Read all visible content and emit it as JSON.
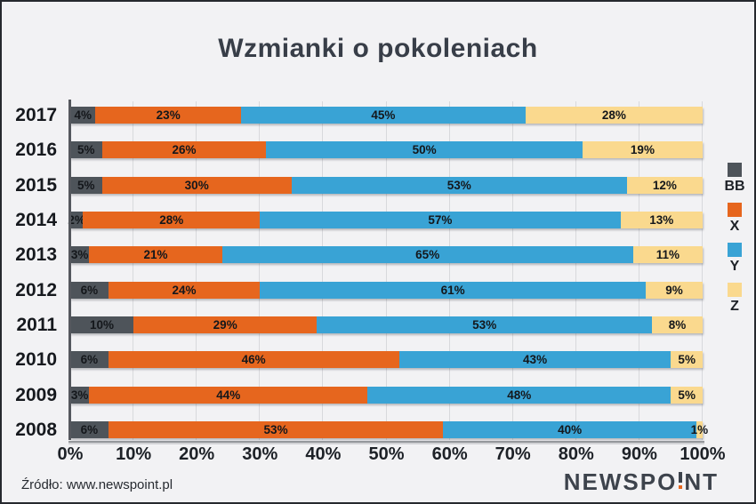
{
  "chart_data": {
    "type": "bar",
    "orientation": "horizontal",
    "stacked": true,
    "title": "Wzmianki o pokoleniach",
    "categories": [
      "2017",
      "2016",
      "2015",
      "2014",
      "2013",
      "2012",
      "2011",
      "2010",
      "2009",
      "2008"
    ],
    "series": [
      {
        "name": "BB",
        "color": "#4e545a",
        "values": [
          4,
          5,
          5,
          2,
          3,
          6,
          10,
          6,
          3,
          6
        ]
      },
      {
        "name": "X",
        "color": "#e6661e",
        "values": [
          23,
          26,
          30,
          28,
          21,
          24,
          29,
          46,
          44,
          53
        ]
      },
      {
        "name": "Y",
        "color": "#39a3d5",
        "values": [
          45,
          50,
          53,
          57,
          65,
          61,
          53,
          43,
          48,
          40
        ]
      },
      {
        "name": "Z",
        "color": "#fad98e",
        "values": [
          28,
          19,
          12,
          13,
          11,
          9,
          8,
          5,
          5,
          1
        ]
      }
    ],
    "x_ticks": [
      "0%",
      "10%",
      "20%",
      "30%",
      "40%",
      "50%",
      "60%",
      "70%",
      "80%",
      "90%",
      "100%"
    ],
    "xlim": [
      0,
      100
    ],
    "grid": true,
    "legend_position": "right",
    "value_label_suffix": "%"
  },
  "colors": {
    "background": "#f2f2f4",
    "border": "#26292e",
    "gridline": "#d8d9dc",
    "axis": "#55585e",
    "title_text": "#383e48",
    "logo_dot": "#e6661e"
  },
  "footer": {
    "source": "Źródło: www.newspoint.pl"
  },
  "logo": {
    "left": "NEWSPO",
    "right": "NT"
  }
}
